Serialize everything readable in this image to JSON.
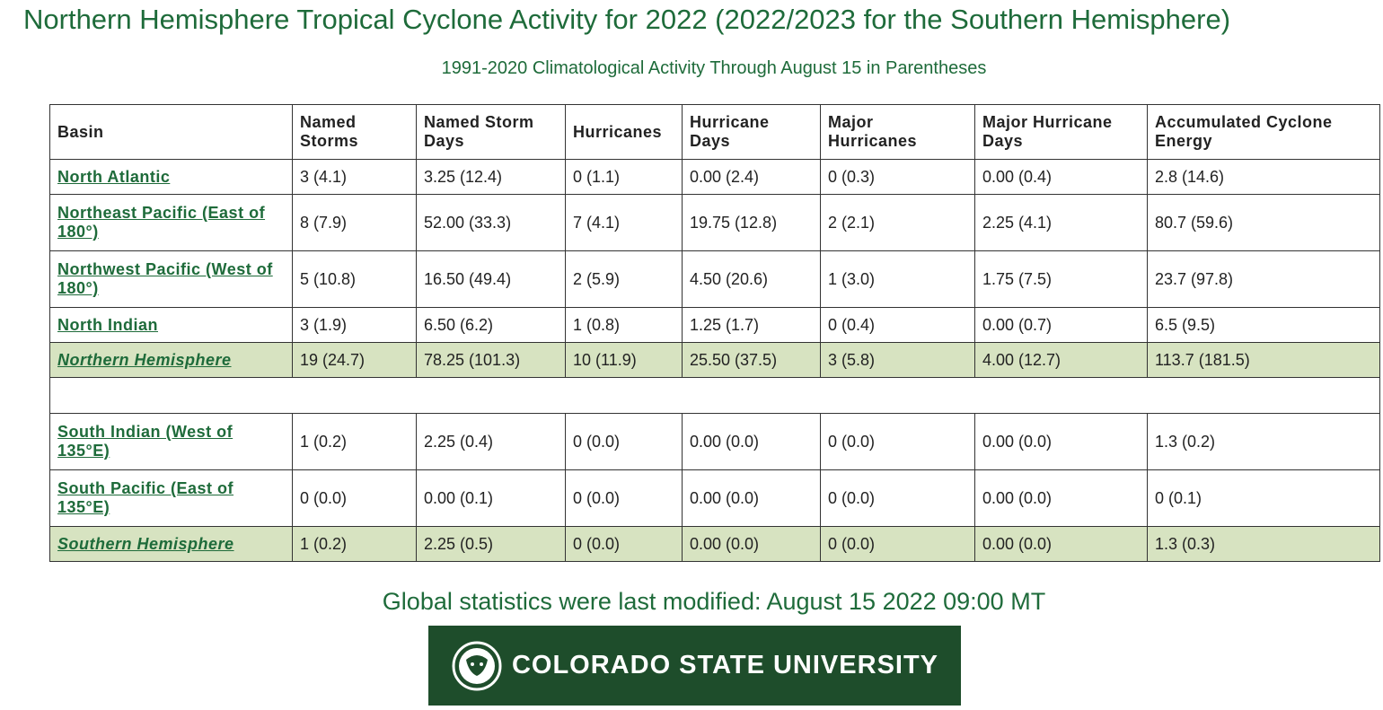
{
  "header": {
    "title": "Northern Hemisphere Tropical Cyclone Activity for 2022 (2022/2023 for the Southern Hemisphere)",
    "subtitle": "1991-2020 Climatological Activity Through August 15 in Parentheses"
  },
  "table": {
    "columns": [
      "Basin",
      "Named Storms",
      "Named Storm Days",
      "Hurricanes",
      "Hurricane Days",
      "Major Hurricanes",
      "Major Hurricane Days",
      "Accumulated Cyclone Energy"
    ],
    "northern_rows": [
      [
        "North Atlantic",
        "3 (4.1)",
        "3.25 (12.4)",
        "0 (1.1)",
        "0.00 (2.4)",
        "0 (0.3)",
        "0.00 (0.4)",
        "2.8 (14.6)"
      ],
      [
        "Northeast Pacific (East of 180°)",
        "8 (7.9)",
        "52.00 (33.3)",
        "7 (4.1)",
        "19.75 (12.8)",
        "2 (2.1)",
        "2.25 (4.1)",
        "80.7 (59.6)"
      ],
      [
        "Northwest Pacific (West of 180°)",
        "5 (10.8)",
        "16.50 (49.4)",
        "2 (5.9)",
        "4.50 (20.6)",
        "1 (3.0)",
        "1.75 (7.5)",
        "23.7 (97.8)"
      ],
      [
        "North Indian",
        "3 (1.9)",
        "6.50 (6.2)",
        "1 (0.8)",
        "1.25 (1.7)",
        "0 (0.4)",
        "0.00 (0.7)",
        "6.5 (9.5)"
      ],
      [
        "Northern Hemisphere",
        "19 (24.7)",
        "78.25 (101.3)",
        "10 (11.9)",
        "25.50 (37.5)",
        "3 (5.8)",
        "4.00 (12.7)",
        "113.7 (181.5)"
      ]
    ],
    "southern_rows": [
      [
        "South Indian (West of 135°E)",
        "1 (0.2)",
        "2.25 (0.4)",
        "0 (0.0)",
        "0.00 (0.0)",
        "0 (0.0)",
        "0.00 (0.0)",
        "1.3 (0.2)"
      ],
      [
        "South Pacific (East of 135°E)",
        "0 (0.0)",
        "0.00 (0.1)",
        "0 (0.0)",
        "0.00 (0.0)",
        "0 (0.0)",
        "0.00 (0.0)",
        "0 (0.1)"
      ],
      [
        "Southern Hemisphere",
        "1 (0.2)",
        "2.25 (0.5)",
        "0 (0.0)",
        "0.00 (0.0)",
        "0 (0.0)",
        "0.00 (0.0)",
        "1.3 (0.3)"
      ]
    ]
  },
  "footer": {
    "modified": "Global statistics were last modified: August 15 2022 09:00 MT",
    "logo": "COLORADO STATE UNIVERSITY"
  }
}
